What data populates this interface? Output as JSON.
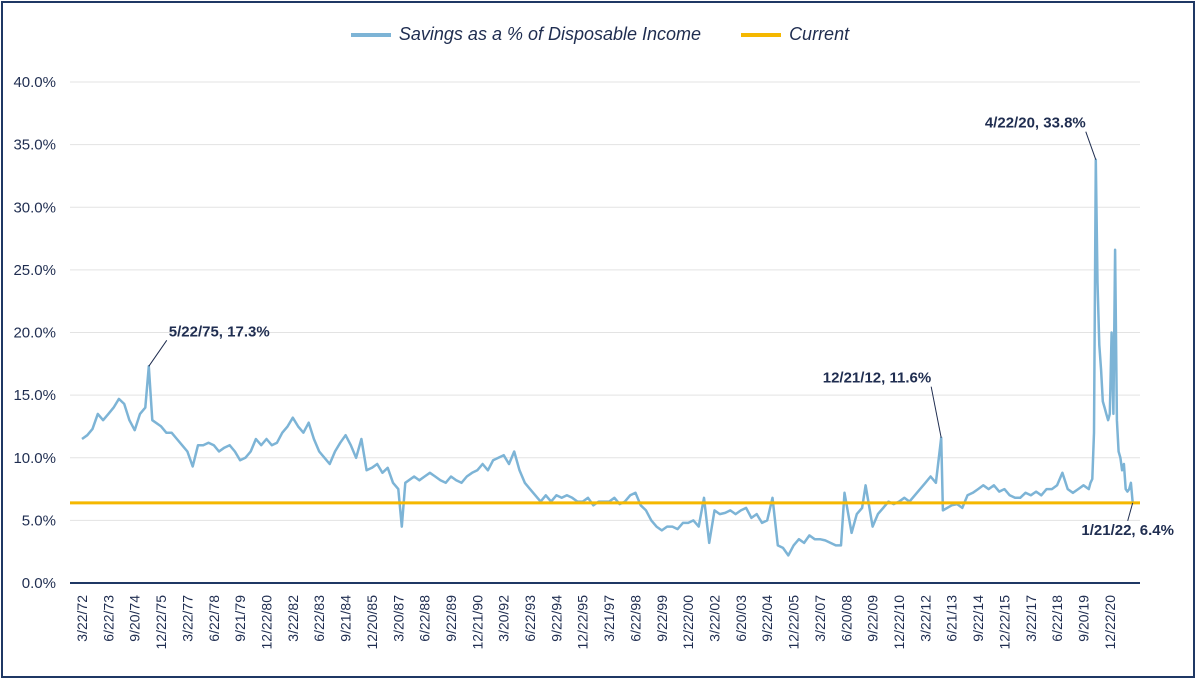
{
  "chart_data": {
    "type": "line",
    "title": "",
    "xlabel": "",
    "ylabel": "",
    "ylim": [
      0,
      40
    ],
    "y_ticks": [
      "0.0%",
      "5.0%",
      "10.0%",
      "15.0%",
      "20.0%",
      "25.0%",
      "30.0%",
      "35.0%",
      "40.0%"
    ],
    "grid": "horizontal",
    "legend_position": "top",
    "x_tick_labels": [
      "3/22/72",
      "6/22/73",
      "9/20/74",
      "12/22/75",
      "3/22/77",
      "6/22/78",
      "9/21/79",
      "12/22/80",
      "3/22/82",
      "6/22/83",
      "9/21/84",
      "12/20/85",
      "3/20/87",
      "6/22/88",
      "9/22/89",
      "12/21/90",
      "3/20/92",
      "6/22/93",
      "9/22/94",
      "12/22/95",
      "3/21/97",
      "6/22/98",
      "9/22/99",
      "12/22/00",
      "3/22/02",
      "6/20/03",
      "9/22/04",
      "12/22/05",
      "3/22/07",
      "6/20/08",
      "9/22/09",
      "12/22/10",
      "3/22/12",
      "6/21/13",
      "9/22/14",
      "12/22/15",
      "3/22/17",
      "6/22/18",
      "9/20/19",
      "12/22/20"
    ],
    "series": [
      {
        "name": "Savings as a % of Disposable Income",
        "color": "#7db4d6",
        "points": [
          [
            "1972-03",
            11.5
          ],
          [
            "1972-06",
            11.8
          ],
          [
            "1972-09",
            12.3
          ],
          [
            "1972-12",
            13.5
          ],
          [
            "1973-03",
            13.0
          ],
          [
            "1973-06",
            13.5
          ],
          [
            "1973-09",
            14.0
          ],
          [
            "1973-12",
            14.7
          ],
          [
            "1974-03",
            14.3
          ],
          [
            "1974-06",
            13.0
          ],
          [
            "1974-09",
            12.2
          ],
          [
            "1974-12",
            13.5
          ],
          [
            "1975-03",
            14.0
          ],
          [
            "1975-05",
            17.3
          ],
          [
            "1975-07",
            13.0
          ],
          [
            "1975-12",
            12.5
          ],
          [
            "1976-03",
            12.0
          ],
          [
            "1976-06",
            12.0
          ],
          [
            "1976-09",
            11.5
          ],
          [
            "1976-12",
            11.0
          ],
          [
            "1977-03",
            10.5
          ],
          [
            "1977-06",
            9.3
          ],
          [
            "1977-09",
            11.0
          ],
          [
            "1977-12",
            11.0
          ],
          [
            "1978-03",
            11.2
          ],
          [
            "1978-06",
            11.0
          ],
          [
            "1978-09",
            10.5
          ],
          [
            "1978-12",
            10.8
          ],
          [
            "1979-03",
            11.0
          ],
          [
            "1979-06",
            10.5
          ],
          [
            "1979-09",
            9.8
          ],
          [
            "1979-12",
            10.0
          ],
          [
            "1980-03",
            10.5
          ],
          [
            "1980-06",
            11.5
          ],
          [
            "1980-09",
            11.0
          ],
          [
            "1980-12",
            11.5
          ],
          [
            "1981-03",
            11.0
          ],
          [
            "1981-06",
            11.2
          ],
          [
            "1981-09",
            12.0
          ],
          [
            "1981-12",
            12.5
          ],
          [
            "1982-03",
            13.2
          ],
          [
            "1982-06",
            12.5
          ],
          [
            "1982-09",
            12.0
          ],
          [
            "1982-12",
            12.8
          ],
          [
            "1983-03",
            11.5
          ],
          [
            "1983-06",
            10.5
          ],
          [
            "1983-09",
            10.0
          ],
          [
            "1983-12",
            9.5
          ],
          [
            "1984-03",
            10.5
          ],
          [
            "1984-06",
            11.2
          ],
          [
            "1984-09",
            11.8
          ],
          [
            "1984-12",
            11.0
          ],
          [
            "1985-03",
            10.0
          ],
          [
            "1985-06",
            11.5
          ],
          [
            "1985-09",
            9.0
          ],
          [
            "1985-12",
            9.2
          ],
          [
            "1986-03",
            9.5
          ],
          [
            "1986-06",
            8.8
          ],
          [
            "1986-09",
            9.2
          ],
          [
            "1986-12",
            8.0
          ],
          [
            "1987-03",
            7.5
          ],
          [
            "1987-05",
            4.5
          ],
          [
            "1987-07",
            8.0
          ],
          [
            "1987-12",
            8.5
          ],
          [
            "1988-03",
            8.2
          ],
          [
            "1988-06",
            8.5
          ],
          [
            "1988-09",
            8.8
          ],
          [
            "1988-12",
            8.5
          ],
          [
            "1989-03",
            8.2
          ],
          [
            "1989-06",
            8.0
          ],
          [
            "1989-09",
            8.5
          ],
          [
            "1989-12",
            8.2
          ],
          [
            "1990-03",
            8.0
          ],
          [
            "1990-06",
            8.5
          ],
          [
            "1990-09",
            8.8
          ],
          [
            "1990-12",
            9.0
          ],
          [
            "1991-03",
            9.5
          ],
          [
            "1991-06",
            9.0
          ],
          [
            "1991-09",
            9.8
          ],
          [
            "1991-12",
            10.0
          ],
          [
            "1992-03",
            10.2
          ],
          [
            "1992-06",
            9.5
          ],
          [
            "1992-09",
            10.5
          ],
          [
            "1992-12",
            9.0
          ],
          [
            "1993-03",
            8.0
          ],
          [
            "1993-06",
            7.5
          ],
          [
            "1993-09",
            7.0
          ],
          [
            "1993-12",
            6.5
          ],
          [
            "1994-03",
            7.0
          ],
          [
            "1994-06",
            6.5
          ],
          [
            "1994-09",
            7.0
          ],
          [
            "1994-12",
            6.8
          ],
          [
            "1995-03",
            7.0
          ],
          [
            "1995-06",
            6.8
          ],
          [
            "1995-09",
            6.5
          ],
          [
            "1995-12",
            6.5
          ],
          [
            "1996-03",
            6.8
          ],
          [
            "1996-06",
            6.2
          ],
          [
            "1996-09",
            6.5
          ],
          [
            "1996-12",
            6.5
          ],
          [
            "1997-03",
            6.5
          ],
          [
            "1997-06",
            6.8
          ],
          [
            "1997-09",
            6.3
          ],
          [
            "1997-12",
            6.5
          ],
          [
            "1998-03",
            7.0
          ],
          [
            "1998-06",
            7.2
          ],
          [
            "1998-09",
            6.2
          ],
          [
            "1998-12",
            5.8
          ],
          [
            "1999-03",
            5.0
          ],
          [
            "1999-06",
            4.5
          ],
          [
            "1999-09",
            4.2
          ],
          [
            "1999-12",
            4.5
          ],
          [
            "2000-03",
            4.5
          ],
          [
            "2000-06",
            4.3
          ],
          [
            "2000-09",
            4.8
          ],
          [
            "2000-12",
            4.8
          ],
          [
            "2001-03",
            5.0
          ],
          [
            "2001-06",
            4.5
          ],
          [
            "2001-09",
            6.8
          ],
          [
            "2001-12",
            3.2
          ],
          [
            "2002-03",
            5.8
          ],
          [
            "2002-06",
            5.5
          ],
          [
            "2002-09",
            5.6
          ],
          [
            "2002-12",
            5.8
          ],
          [
            "2003-03",
            5.5
          ],
          [
            "2003-06",
            5.8
          ],
          [
            "2003-09",
            6.0
          ],
          [
            "2003-12",
            5.2
          ],
          [
            "2004-03",
            5.5
          ],
          [
            "2004-06",
            4.8
          ],
          [
            "2004-09",
            5.0
          ],
          [
            "2004-12",
            6.8
          ],
          [
            "2005-03",
            3.0
          ],
          [
            "2005-06",
            2.8
          ],
          [
            "2005-09",
            2.2
          ],
          [
            "2005-12",
            3.0
          ],
          [
            "2006-03",
            3.5
          ],
          [
            "2006-06",
            3.2
          ],
          [
            "2006-09",
            3.8
          ],
          [
            "2006-12",
            3.5
          ],
          [
            "2007-03",
            3.5
          ],
          [
            "2007-06",
            3.4
          ],
          [
            "2007-09",
            3.2
          ],
          [
            "2007-12",
            3.0
          ],
          [
            "2008-03",
            3.0
          ],
          [
            "2008-05",
            7.2
          ],
          [
            "2008-09",
            4.0
          ],
          [
            "2008-12",
            5.5
          ],
          [
            "2009-03",
            6.0
          ],
          [
            "2009-05",
            7.8
          ],
          [
            "2009-09",
            4.5
          ],
          [
            "2009-12",
            5.5
          ],
          [
            "2010-03",
            6.0
          ],
          [
            "2010-06",
            6.5
          ],
          [
            "2010-09",
            6.3
          ],
          [
            "2010-12",
            6.5
          ],
          [
            "2011-03",
            6.8
          ],
          [
            "2011-06",
            6.5
          ],
          [
            "2011-09",
            7.0
          ],
          [
            "2011-12",
            7.5
          ],
          [
            "2012-03",
            8.0
          ],
          [
            "2012-06",
            8.5
          ],
          [
            "2012-09",
            8.0
          ],
          [
            "2012-12",
            11.6
          ],
          [
            "2013-01",
            5.8
          ],
          [
            "2013-06",
            6.2
          ],
          [
            "2013-09",
            6.3
          ],
          [
            "2013-12",
            6.0
          ],
          [
            "2014-03",
            7.0
          ],
          [
            "2014-06",
            7.2
          ],
          [
            "2014-09",
            7.5
          ],
          [
            "2014-12",
            7.8
          ],
          [
            "2015-03",
            7.5
          ],
          [
            "2015-06",
            7.8
          ],
          [
            "2015-09",
            7.3
          ],
          [
            "2015-12",
            7.5
          ],
          [
            "2016-03",
            7.0
          ],
          [
            "2016-06",
            6.8
          ],
          [
            "2016-09",
            6.8
          ],
          [
            "2016-12",
            7.2
          ],
          [
            "2017-03",
            7.0
          ],
          [
            "2017-06",
            7.3
          ],
          [
            "2017-09",
            7.0
          ],
          [
            "2017-12",
            7.5
          ],
          [
            "2018-03",
            7.5
          ],
          [
            "2018-06",
            7.8
          ],
          [
            "2018-09",
            8.8
          ],
          [
            "2018-12",
            7.5
          ],
          [
            "2019-03",
            7.2
          ],
          [
            "2019-06",
            7.5
          ],
          [
            "2019-09",
            7.8
          ],
          [
            "2019-12",
            7.5
          ],
          [
            "2020-01",
            8.0
          ],
          [
            "2020-02",
            8.3
          ],
          [
            "2020-03",
            12.0
          ],
          [
            "2020-04",
            33.8
          ],
          [
            "2020-05",
            24.0
          ],
          [
            "2020-06",
            19.0
          ],
          [
            "2020-07",
            17.0
          ],
          [
            "2020-08",
            14.5
          ],
          [
            "2020-09",
            14.0
          ],
          [
            "2020-10",
            13.5
          ],
          [
            "2020-11",
            13.0
          ],
          [
            "2020-12",
            13.5
          ],
          [
            "2021-01",
            20.0
          ],
          [
            "2021-02",
            13.5
          ],
          [
            "2021-03",
            26.6
          ],
          [
            "2021-04",
            13.0
          ],
          [
            "2021-05",
            10.5
          ],
          [
            "2021-06",
            10.0
          ],
          [
            "2021-07",
            9.0
          ],
          [
            "2021-08",
            9.5
          ],
          [
            "2021-09",
            7.5
          ],
          [
            "2021-10",
            7.3
          ],
          [
            "2021-11",
            7.5
          ],
          [
            "2021-12",
            8.0
          ],
          [
            "2022-01",
            6.4
          ]
        ]
      },
      {
        "name": "Current",
        "color": "#f5b800",
        "value": 6.4
      }
    ],
    "annotations": [
      {
        "text": "5/22/75, 17.3%",
        "x": "1975-05",
        "y": 17.3
      },
      {
        "text": "12/21/12, 11.6%",
        "x": "2012-12",
        "y": 11.6
      },
      {
        "text": "4/22/20, 33.8%",
        "x": "2020-04",
        "y": 33.8
      },
      {
        "text": "1/21/22, 6.4%",
        "x": "2022-01",
        "y": 6.4
      }
    ]
  }
}
